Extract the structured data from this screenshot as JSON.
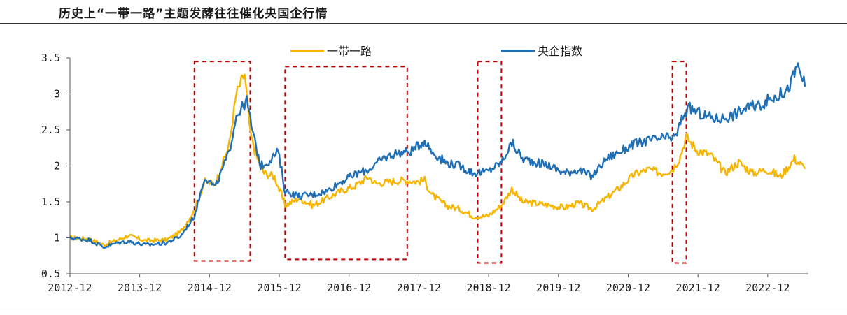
{
  "title": "历史上“一带一路”主题发酵往往催化央国企行情",
  "chart_data": {
    "type": "line",
    "title": "历史上“一带一路”主题发酵往往催化央国企行情",
    "xlabel": "",
    "ylabel": "",
    "ylim": [
      0.5,
      3.5
    ],
    "yticks": [
      "0.5",
      "1",
      "1.5",
      "2",
      "2.5",
      "3",
      "3.5"
    ],
    "xlim": [
      2012.917,
      2023.5
    ],
    "xticks": [
      "2012-12",
      "2013-12",
      "2014-12",
      "2015-12",
      "2016-12",
      "2017-12",
      "2018-12",
      "2019-12",
      "2020-12",
      "2021-12",
      "2022-12"
    ],
    "grid": false,
    "legend": "top-center",
    "series": [
      {
        "name": "一带一路",
        "color": "#F7B500",
        "points": [
          [
            2012.92,
            1.0
          ],
          [
            2013.2,
            0.98
          ],
          [
            2013.4,
            0.9
          ],
          [
            2013.6,
            0.97
          ],
          [
            2013.75,
            1.03
          ],
          [
            2014.0,
            0.96
          ],
          [
            2014.3,
            0.97
          ],
          [
            2014.5,
            1.08
          ],
          [
            2014.7,
            1.38
          ],
          [
            2014.85,
            1.78
          ],
          [
            2015.0,
            1.75
          ],
          [
            2015.2,
            2.3
          ],
          [
            2015.3,
            3.0
          ],
          [
            2015.42,
            3.28
          ],
          [
            2015.5,
            2.45
          ],
          [
            2015.6,
            2.1
          ],
          [
            2015.7,
            1.9
          ],
          [
            2015.85,
            1.85
          ],
          [
            2016.0,
            1.45
          ],
          [
            2016.2,
            1.55
          ],
          [
            2016.4,
            1.45
          ],
          [
            2016.6,
            1.55
          ],
          [
            2016.8,
            1.65
          ],
          [
            2017.0,
            1.72
          ],
          [
            2017.2,
            1.85
          ],
          [
            2017.3,
            1.75
          ],
          [
            2017.5,
            1.78
          ],
          [
            2017.7,
            1.8
          ],
          [
            2017.9,
            1.78
          ],
          [
            2018.0,
            1.8
          ],
          [
            2018.1,
            1.6
          ],
          [
            2018.3,
            1.45
          ],
          [
            2018.5,
            1.4
          ],
          [
            2018.7,
            1.3
          ],
          [
            2018.9,
            1.3
          ],
          [
            2019.1,
            1.45
          ],
          [
            2019.25,
            1.68
          ],
          [
            2019.4,
            1.5
          ],
          [
            2019.6,
            1.48
          ],
          [
            2019.8,
            1.45
          ],
          [
            2020.0,
            1.42
          ],
          [
            2020.2,
            1.48
          ],
          [
            2020.4,
            1.4
          ],
          [
            2020.6,
            1.55
          ],
          [
            2020.8,
            1.7
          ],
          [
            2021.0,
            1.88
          ],
          [
            2021.2,
            1.95
          ],
          [
            2021.4,
            1.9
          ],
          [
            2021.55,
            1.95
          ],
          [
            2021.65,
            2.1
          ],
          [
            2021.75,
            2.4
          ],
          [
            2021.9,
            2.22
          ],
          [
            2022.1,
            2.15
          ],
          [
            2022.3,
            1.9
          ],
          [
            2022.5,
            2.05
          ],
          [
            2022.7,
            1.9
          ],
          [
            2022.9,
            1.95
          ],
          [
            2023.1,
            1.85
          ],
          [
            2023.3,
            2.1
          ],
          [
            2023.45,
            1.96
          ]
        ]
      },
      {
        "name": "央企指数",
        "color": "#1F6FB6",
        "points": [
          [
            2012.92,
            1.0
          ],
          [
            2013.2,
            0.97
          ],
          [
            2013.4,
            0.87
          ],
          [
            2013.6,
            0.93
          ],
          [
            2013.75,
            0.95
          ],
          [
            2014.0,
            0.9
          ],
          [
            2014.3,
            0.93
          ],
          [
            2014.5,
            1.02
          ],
          [
            2014.7,
            1.3
          ],
          [
            2014.85,
            1.85
          ],
          [
            2015.0,
            1.7
          ],
          [
            2015.2,
            2.2
          ],
          [
            2015.3,
            2.7
          ],
          [
            2015.45,
            2.9
          ],
          [
            2015.55,
            2.4
          ],
          [
            2015.65,
            2.0
          ],
          [
            2015.75,
            2.05
          ],
          [
            2015.9,
            2.2
          ],
          [
            2016.0,
            1.65
          ],
          [
            2016.2,
            1.58
          ],
          [
            2016.4,
            1.6
          ],
          [
            2016.6,
            1.65
          ],
          [
            2016.8,
            1.78
          ],
          [
            2017.0,
            1.88
          ],
          [
            2017.2,
            1.95
          ],
          [
            2017.4,
            2.1
          ],
          [
            2017.6,
            2.18
          ],
          [
            2017.8,
            2.2
          ],
          [
            2018.0,
            2.35
          ],
          [
            2018.1,
            2.2
          ],
          [
            2018.3,
            2.05
          ],
          [
            2018.5,
            2.0
          ],
          [
            2018.7,
            1.9
          ],
          [
            2018.9,
            1.92
          ],
          [
            2019.1,
            2.05
          ],
          [
            2019.25,
            2.32
          ],
          [
            2019.4,
            2.1
          ],
          [
            2019.6,
            2.05
          ],
          [
            2019.8,
            2.0
          ],
          [
            2020.0,
            1.9
          ],
          [
            2020.2,
            1.95
          ],
          [
            2020.4,
            1.85
          ],
          [
            2020.6,
            2.1
          ],
          [
            2020.8,
            2.2
          ],
          [
            2021.0,
            2.3
          ],
          [
            2021.2,
            2.35
          ],
          [
            2021.4,
            2.38
          ],
          [
            2021.6,
            2.4
          ],
          [
            2021.7,
            2.7
          ],
          [
            2021.8,
            2.8
          ],
          [
            2022.0,
            2.7
          ],
          [
            2022.2,
            2.65
          ],
          [
            2022.4,
            2.7
          ],
          [
            2022.6,
            2.8
          ],
          [
            2022.8,
            2.85
          ],
          [
            2023.0,
            2.95
          ],
          [
            2023.2,
            3.05
          ],
          [
            2023.35,
            3.4
          ],
          [
            2023.45,
            3.1
          ]
        ]
      }
    ],
    "highlight_periods": [
      {
        "x": [
          2014.7,
          2015.5
        ],
        "y": [
          0.68,
          3.45
        ]
      },
      {
        "x": [
          2016.0,
          2017.75
        ],
        "y": [
          0.7,
          3.38
        ]
      },
      {
        "x": [
          2018.76,
          2019.1
        ],
        "y": [
          0.65,
          3.45
        ]
      },
      {
        "x": [
          2021.55,
          2021.75
        ],
        "y": [
          0.65,
          3.45
        ]
      }
    ],
    "highlight_color": "#C00000"
  }
}
